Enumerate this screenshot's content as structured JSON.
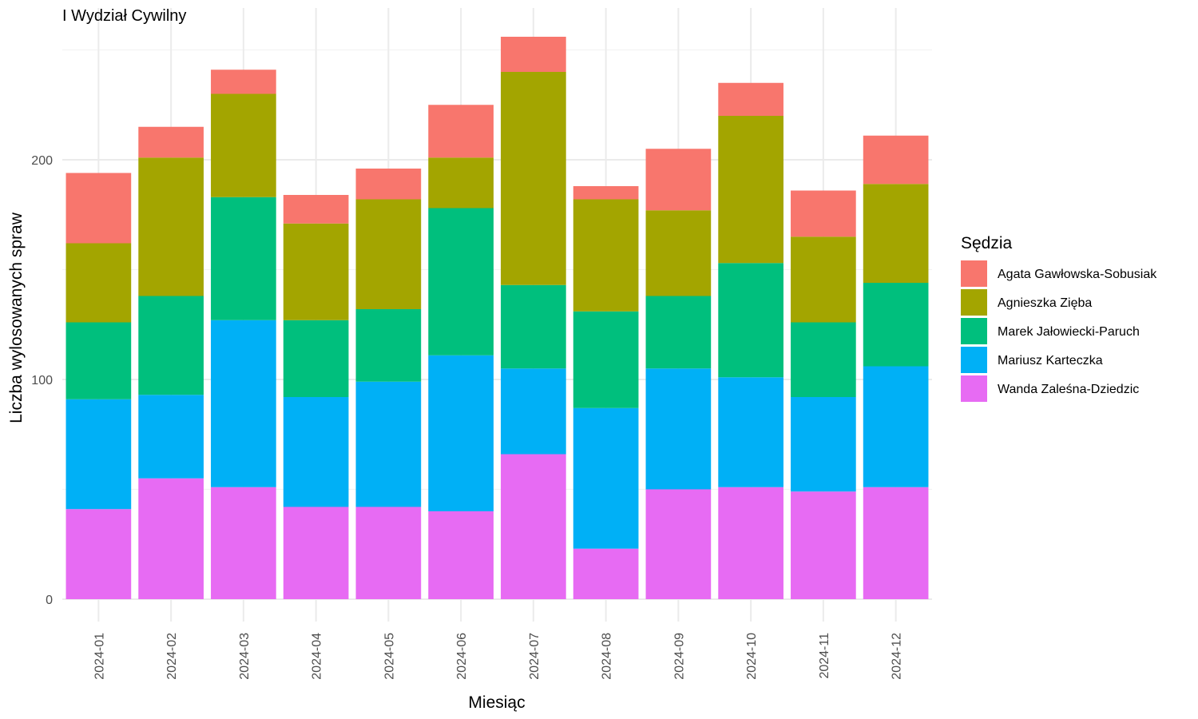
{
  "chart_data": {
    "type": "bar",
    "stacked": true,
    "title": "I Wydział Cywilny",
    "xlabel": "Miesiąc",
    "ylabel": "Liczba wylosowanych spraw",
    "ylim": [
      0,
      260
    ],
    "yticks": [
      0,
      100,
      200
    ],
    "grid": true,
    "legend_position": "right",
    "legend_title": "Sędzia",
    "categories": [
      "2024-01",
      "2024-02",
      "2024-03",
      "2024-04",
      "2024-05",
      "2024-06",
      "2024-07",
      "2024-08",
      "2024-09",
      "2024-10",
      "2024-11",
      "2024-12"
    ],
    "series": [
      {
        "name": "Wanda Zaleśna-Dziedzic",
        "color": "#E76BF3",
        "values": [
          41,
          55,
          51,
          42,
          42,
          40,
          66,
          23,
          50,
          51,
          49,
          51
        ]
      },
      {
        "name": "Mariusz Karteczka",
        "color": "#00B0F6",
        "values": [
          50,
          38,
          76,
          50,
          57,
          71,
          39,
          64,
          55,
          50,
          43,
          55
        ]
      },
      {
        "name": "Marek Jałowiecki-Paruch",
        "color": "#00BF7D",
        "values": [
          35,
          45,
          56,
          35,
          33,
          67,
          38,
          44,
          33,
          52,
          34,
          38
        ]
      },
      {
        "name": "Agnieszka Zięba",
        "color": "#A3A500",
        "values": [
          36,
          63,
          47,
          44,
          50,
          23,
          97,
          51,
          39,
          67,
          39,
          45
        ]
      },
      {
        "name": "Agata Gawłowska-Sobusiak",
        "color": "#F8766D",
        "values": [
          32,
          14,
          11,
          13,
          14,
          24,
          16,
          6,
          28,
          15,
          21,
          22
        ]
      }
    ]
  }
}
